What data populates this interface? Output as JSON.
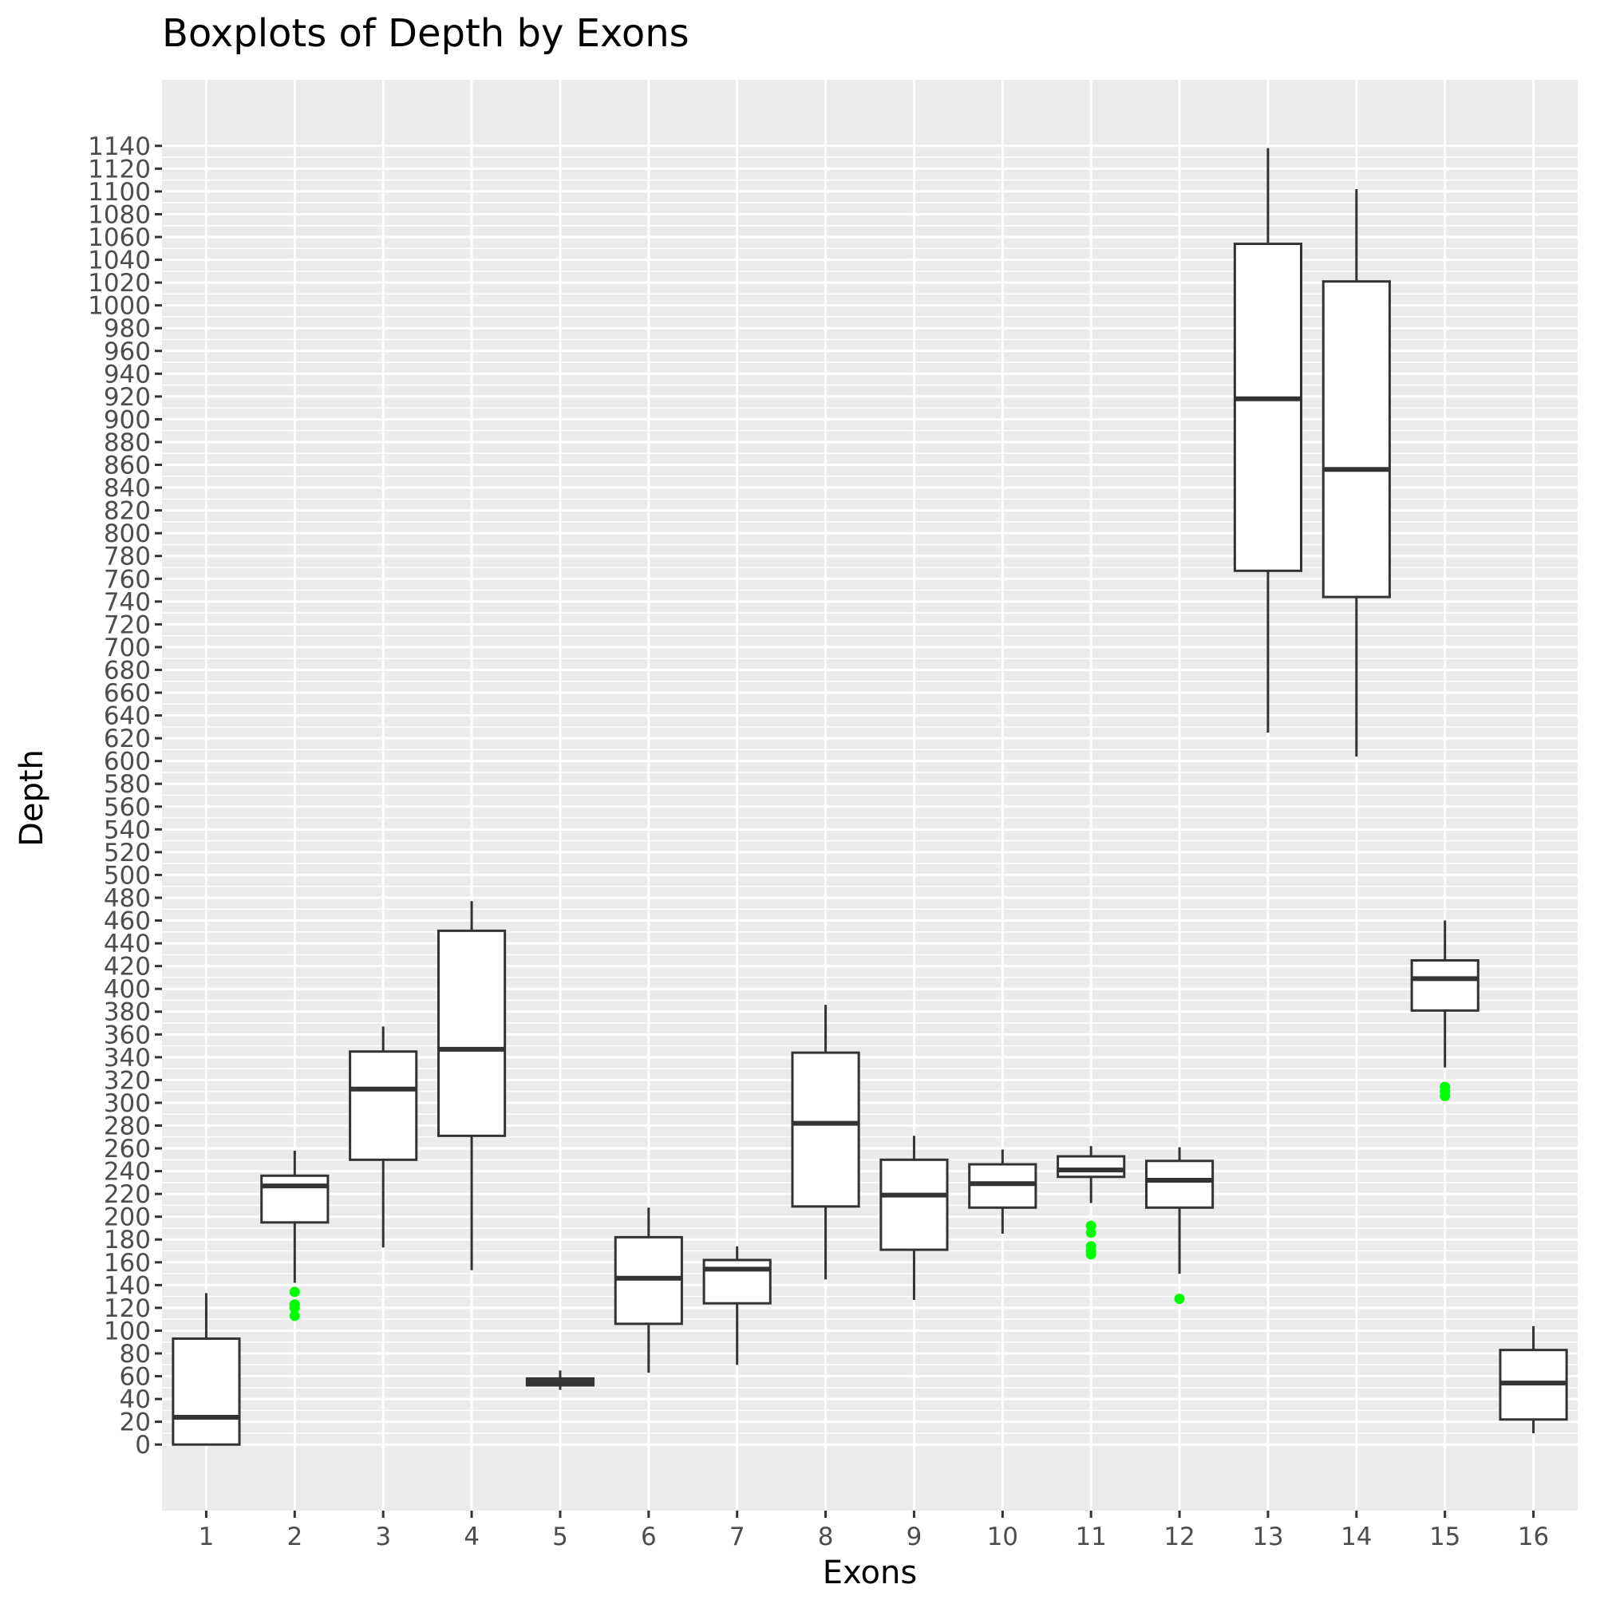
{
  "chart_data": {
    "type": "boxplot",
    "title": "Boxplots of Depth by Exons",
    "xlabel": "Exons",
    "ylabel": "Depth",
    "categories": [
      "1",
      "2",
      "3",
      "4",
      "5",
      "6",
      "7",
      "8",
      "9",
      "10",
      "11",
      "12",
      "13",
      "14",
      "15",
      "16"
    ],
    "y_ticks": [
      0,
      20,
      40,
      60,
      80,
      100,
      120,
      140,
      160,
      180,
      200,
      220,
      240,
      260,
      280,
      300,
      320,
      340,
      360,
      380,
      400,
      420,
      440,
      460,
      480,
      500,
      520,
      540,
      560,
      580,
      600,
      620,
      640,
      660,
      680,
      700,
      720,
      740,
      760,
      780,
      800,
      820,
      840,
      860,
      880,
      900,
      920,
      940,
      960,
      980,
      1000,
      1020,
      1040,
      1060,
      1080,
      1100,
      1120,
      1140
    ],
    "ylim": [
      -58,
      1198
    ],
    "boxes": [
      {
        "category": "1",
        "whisker_low": 0,
        "q1": 0,
        "median": 24,
        "q3": 93,
        "whisker_high": 133,
        "outliers": []
      },
      {
        "category": "2",
        "whisker_low": 142,
        "q1": 195,
        "median": 227,
        "q3": 236,
        "whisker_high": 258,
        "outliers": [
          134,
          123,
          120,
          113
        ]
      },
      {
        "category": "3",
        "whisker_low": 173,
        "q1": 250,
        "median": 312,
        "q3": 345,
        "whisker_high": 367,
        "outliers": []
      },
      {
        "category": "4",
        "whisker_low": 153,
        "q1": 271,
        "median": 347,
        "q3": 451,
        "whisker_high": 477,
        "outliers": []
      },
      {
        "category": "5",
        "whisker_low": 48,
        "q1": 52,
        "median": 55,
        "q3": 58,
        "whisker_high": 65,
        "outliers": []
      },
      {
        "category": "6",
        "whisker_low": 63,
        "q1": 106,
        "median": 146,
        "q3": 182,
        "whisker_high": 208,
        "outliers": []
      },
      {
        "category": "7",
        "whisker_low": 70,
        "q1": 124,
        "median": 154,
        "q3": 162,
        "whisker_high": 174,
        "outliers": []
      },
      {
        "category": "8",
        "whisker_low": 145,
        "q1": 209,
        "median": 282,
        "q3": 344,
        "whisker_high": 386,
        "outliers": []
      },
      {
        "category": "9",
        "whisker_low": 127,
        "q1": 171,
        "median": 219,
        "q3": 250,
        "whisker_high": 271,
        "outliers": []
      },
      {
        "category": "10",
        "whisker_low": 185,
        "q1": 208,
        "median": 229,
        "q3": 246,
        "whisker_high": 259,
        "outliers": []
      },
      {
        "category": "11",
        "whisker_low": 212,
        "q1": 235,
        "median": 241,
        "q3": 253,
        "whisker_high": 262,
        "outliers": [
          192,
          186,
          174,
          170,
          167
        ]
      },
      {
        "category": "12",
        "whisker_low": 150,
        "q1": 208,
        "median": 232,
        "q3": 249,
        "whisker_high": 261,
        "outliers": [
          128
        ]
      },
      {
        "category": "13",
        "whisker_low": 625,
        "q1": 767,
        "median": 918,
        "q3": 1054,
        "whisker_high": 1138,
        "outliers": []
      },
      {
        "category": "14",
        "whisker_low": 604,
        "q1": 744,
        "median": 856,
        "q3": 1021,
        "whisker_high": 1102,
        "outliers": []
      },
      {
        "category": "15",
        "whisker_low": 331,
        "q1": 381,
        "median": 409,
        "q3": 425,
        "whisker_high": 460,
        "outliers": [
          314,
          310,
          306
        ]
      },
      {
        "category": "16",
        "whisker_low": 10,
        "q1": 22,
        "median": 54,
        "q3": 83,
        "whisker_high": 104,
        "outliers": []
      }
    ],
    "grid": true,
    "colors": {
      "panel_background": "#ebebeb",
      "grid_line": "#ffffff",
      "box_stroke": "#333333",
      "box_fill": "#ffffff",
      "outlier": "#00ff00",
      "tick_label": "#4d4d4d",
      "axis_tick": "#333333"
    }
  }
}
